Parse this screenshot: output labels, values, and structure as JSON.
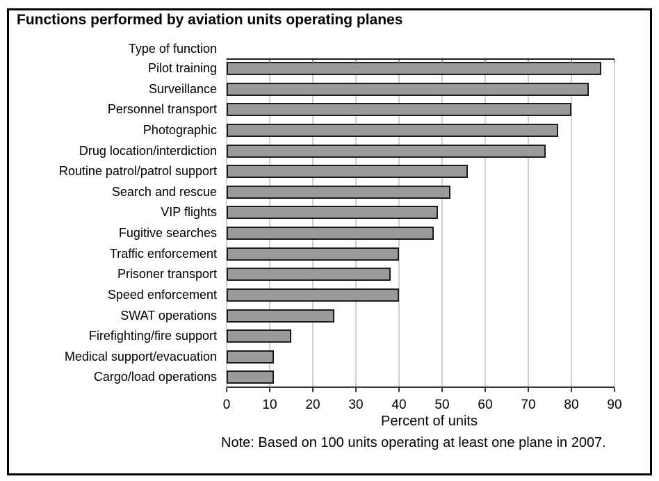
{
  "chart_data": {
    "type": "bar",
    "orientation": "horizontal",
    "title": "Functions performed by aviation units operating planes",
    "ylabel": "Type of function",
    "xlabel": "Percent of units",
    "note": "Note: Based on 100 units operating at least one plane in 2007.",
    "categories": [
      "Pilot training",
      "Surveillance",
      "Personnel transport",
      "Photographic",
      "Drug location/interdiction",
      "Routine patrol/patrol support",
      "Search and rescue",
      "VIP flights",
      "Fugitive searches",
      "Traffic enforcement",
      "Prisoner transport",
      "Speed enforcement",
      "SWAT operations",
      "Firefighting/fire support",
      "Medical support/evacuation",
      "Cargo/load operations"
    ],
    "values": [
      87,
      84,
      80,
      77,
      74,
      56,
      52,
      49,
      48,
      40,
      38,
      40,
      25,
      15,
      11,
      11
    ],
    "xlim": [
      0,
      90
    ],
    "x_ticks": [
      0,
      10,
      20,
      30,
      40,
      50,
      60,
      70,
      80,
      90
    ],
    "grid": "vertical-major",
    "legend": "none",
    "bar_color": "#9a9a9a",
    "bar_border_color": "#1c1c1c",
    "gridline_color": "#cfcfcf",
    "axis_color": "#3a3a3a"
  }
}
